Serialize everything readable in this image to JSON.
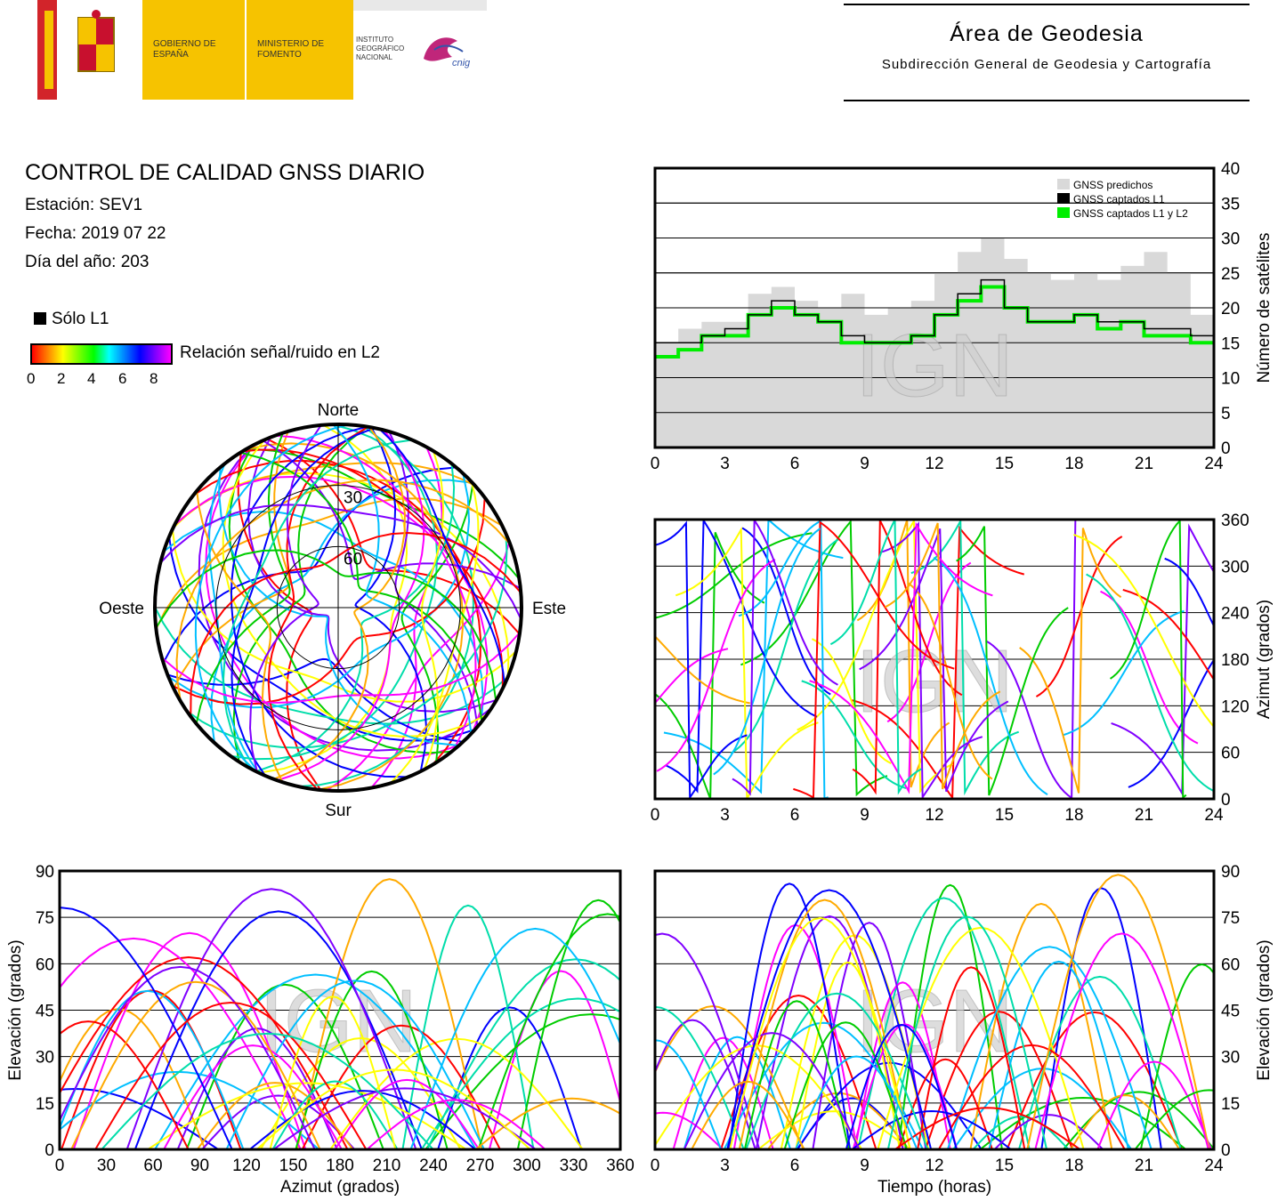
{
  "header": {
    "gobierno": "GOBIERNO DE ESPAÑA",
    "ministerio": "MINISTERIO DE FOMENTO",
    "instituto": "INSTITUTO GEOGRÁFICO NACIONAL",
    "cnig": "cnig",
    "area_title": "Área de Geodesia",
    "area_subtitle": "Subdirección General de Geodesia y Cartografía"
  },
  "info": {
    "title": "CONTROL DE CALIDAD GNSS DIARIO",
    "station": "Estación: SEV1",
    "date": "Fecha: 2019 07 22",
    "doy": "Día del año: 203",
    "legend_l1": "Sólo L1",
    "colorbar_label": "Relación señal/ruido en L2",
    "colorbar_ticks": [
      "0",
      "2",
      "4",
      "6",
      "8"
    ]
  },
  "watermark": "IGN",
  "colors": {
    "predicted": "#d9d9d9",
    "l1": "#000000",
    "l1l2": "#00ee00",
    "track_palette": [
      "#ff00ff",
      "#ff0000",
      "#00cc00",
      "#0000ff",
      "#00bfff",
      "#ffaa00",
      "#8000ff",
      "#00ddaa",
      "#ffff00"
    ]
  },
  "chart_data": [
    {
      "type": "area",
      "ylabel": "Número de satélites",
      "xlim": [
        0,
        24
      ],
      "ylim": [
        0,
        40
      ],
      "xticks": [
        "0",
        "3",
        "6",
        "9",
        "12",
        "15",
        "18",
        "21",
        "24"
      ],
      "yticks": [
        "0",
        "5",
        "10",
        "15",
        "20",
        "25",
        "30",
        "35",
        "40"
      ],
      "legend_position": "top-right",
      "grid": true,
      "x": [
        0,
        1,
        2,
        3,
        4,
        5,
        6,
        7,
        8,
        9,
        10,
        11,
        12,
        13,
        14,
        15,
        16,
        17,
        18,
        19,
        20,
        21,
        22,
        23,
        24
      ],
      "series": [
        {
          "name": "GNSS predichos",
          "values": [
            15,
            17,
            18,
            18,
            22,
            23,
            21,
            20,
            22,
            19,
            20,
            21,
            25,
            28,
            30,
            27,
            25,
            24,
            25,
            24,
            26,
            28,
            25,
            19,
            18
          ]
        },
        {
          "name": "GNSS captados L1",
          "values": [
            15,
            15,
            16,
            17,
            19,
            21,
            19,
            18,
            16,
            15,
            15,
            16,
            19,
            22,
            24,
            20,
            18,
            18,
            19,
            18,
            18,
            17,
            17,
            16,
            16
          ]
        },
        {
          "name": "GNSS captados L1 y L2",
          "values": [
            13,
            14,
            16,
            16,
            19,
            20,
            19,
            18,
            15,
            15,
            15,
            16,
            19,
            21,
            23,
            20,
            18,
            18,
            19,
            17,
            18,
            16,
            16,
            15,
            15
          ]
        }
      ]
    },
    {
      "type": "scatter",
      "ylabel": "Azimut (grados)",
      "xlim": [
        0,
        24
      ],
      "ylim": [
        0,
        360
      ],
      "xticks": [
        "0",
        "3",
        "6",
        "9",
        "12",
        "15",
        "18",
        "21",
        "24"
      ],
      "yticks": [
        "0",
        "60",
        "120",
        "180",
        "240",
        "300",
        "360"
      ],
      "grid": true
    },
    {
      "type": "scatter",
      "xlabel": "Azimut (grados)",
      "ylabel": "Elevación (grados)",
      "xlim": [
        0,
        360
      ],
      "ylim": [
        0,
        90
      ],
      "xticks": [
        "0",
        "30",
        "60",
        "90",
        "120",
        "150",
        "180",
        "210",
        "240",
        "270",
        "300",
        "330",
        "360"
      ],
      "yticks": [
        "0",
        "15",
        "30",
        "45",
        "60",
        "75",
        "90"
      ],
      "grid": true
    },
    {
      "type": "scatter",
      "xlabel": "Tiempo (horas)",
      "ylabel": "Elevación (grados)",
      "xlim": [
        0,
        24
      ],
      "ylim": [
        0,
        90
      ],
      "xticks": [
        "0",
        "3",
        "6",
        "9",
        "12",
        "15",
        "18",
        "21",
        "24"
      ],
      "yticks": [
        "0",
        "15",
        "30",
        "45",
        "60",
        "75",
        "90"
      ],
      "grid": true
    },
    {
      "type": "scatter",
      "polar": true,
      "directions": {
        "north": "Norte",
        "south": "Sur",
        "west": "Oeste",
        "east": "Este"
      },
      "rings": [
        "30",
        "60"
      ]
    }
  ]
}
